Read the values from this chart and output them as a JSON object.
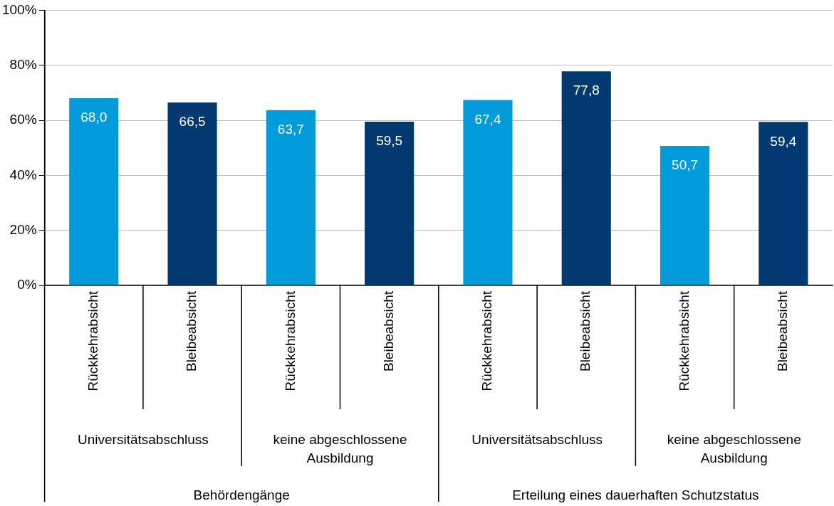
{
  "chart_data": {
    "type": "bar",
    "categories": [
      "Rückkehrabsicht",
      "Bleibeabsicht",
      "Rückkehrabsicht",
      "Bleibeabsicht",
      "Rückkehrabsicht",
      "Bleibeabsicht",
      "Rückkehrabsicht",
      "Bleibeabsicht"
    ],
    "values": [
      68.0,
      66.5,
      63.7,
      59.5,
      67.4,
      77.8,
      50.7,
      59.4
    ],
    "value_labels": [
      "68,0",
      "66,5",
      "63,7",
      "59,5",
      "67,4",
      "77,8",
      "50,7",
      "59,4"
    ],
    "colors": [
      "#009bdb",
      "#003a70",
      "#009bdb",
      "#003a70",
      "#009bdb",
      "#003a70",
      "#009bdb",
      "#003a70"
    ],
    "ylim": [
      0,
      100
    ],
    "yticks": [
      {
        "value": 0,
        "label": "0%"
      },
      {
        "value": 20,
        "label": "20%"
      },
      {
        "value": 40,
        "label": "40%"
      },
      {
        "value": 60,
        "label": "60%"
      },
      {
        "value": 80,
        "label": "80%"
      },
      {
        "value": 100,
        "label": "100%"
      }
    ],
    "grid": "y",
    "legend": false,
    "annotations": [
      "Universitätsabschluss",
      "keine abgeschlossene Ausbildung",
      "Universitätsabschluss",
      "keine abgeschlossene Ausbildung",
      "Behördengänge",
      "Erteilung eines dauerhaften Schutzstatus"
    ]
  }
}
